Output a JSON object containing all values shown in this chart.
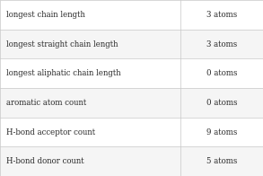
{
  "rows": [
    [
      "longest chain length",
      "3 atoms"
    ],
    [
      "longest straight chain length",
      "3 atoms"
    ],
    [
      "longest aliphatic chain length",
      "0 atoms"
    ],
    [
      "aromatic atom count",
      "0 atoms"
    ],
    [
      "H-bond acceptor count",
      "9 atoms"
    ],
    [
      "H-bond donor count",
      "5 atoms"
    ]
  ],
  "col_split": 0.685,
  "background_color": "#ffffff",
  "border_color": "#c8c8c8",
  "text_color": "#2a2a2a",
  "font_size": 6.2,
  "row_colors": [
    "#ffffff",
    "#f5f5f5"
  ]
}
